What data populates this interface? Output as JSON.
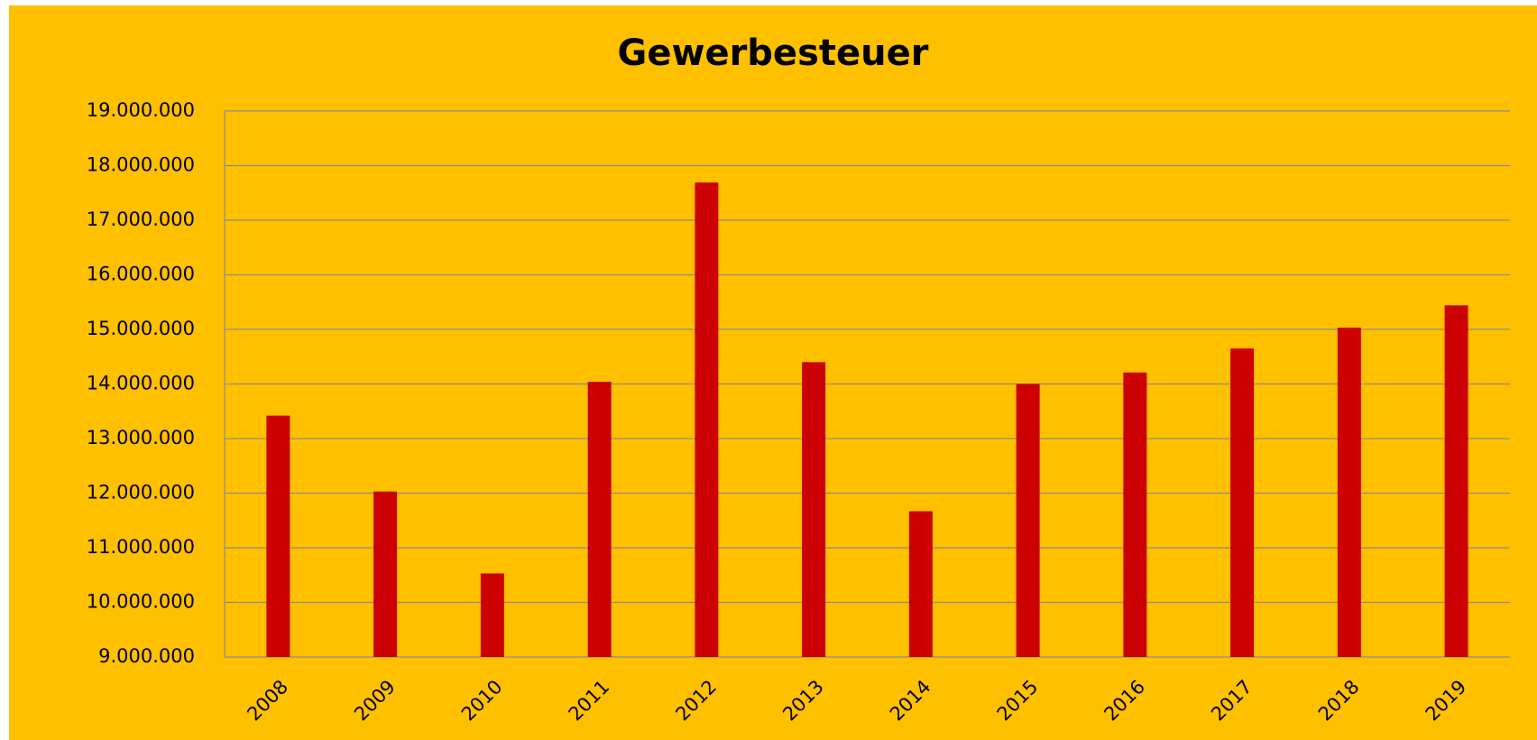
{
  "chart_data": {
    "type": "bar",
    "title": "Gewerbesteuer",
    "categories": [
      "2008",
      "2009",
      "2010",
      "2011",
      "2012",
      "2013",
      "2014",
      "2015",
      "2016",
      "2017",
      "2018",
      "2019"
    ],
    "values": [
      13420000,
      12030000,
      10530000,
      14040000,
      17690000,
      14400000,
      11670000,
      14000000,
      14210000,
      14650000,
      15030000,
      15440000
    ],
    "color": "#cc0000",
    "ylim": [
      9000000,
      19000000
    ],
    "yticks": [
      {
        "value": 9000000,
        "label": "9.000.000"
      },
      {
        "value": 10000000,
        "label": "10.000.000"
      },
      {
        "value": 11000000,
        "label": "11.000.000"
      },
      {
        "value": 12000000,
        "label": "12.000.000"
      },
      {
        "value": 13000000,
        "label": "13.000.000"
      },
      {
        "value": 14000000,
        "label": "14.000.000"
      },
      {
        "value": 15000000,
        "label": "15.000.000"
      },
      {
        "value": 16000000,
        "label": "16.000.000"
      },
      {
        "value": 17000000,
        "label": "17.000.000"
      },
      {
        "value": 18000000,
        "label": "18.000.000"
      },
      {
        "value": 19000000,
        "label": "19.000.000"
      }
    ],
    "grid": true
  }
}
